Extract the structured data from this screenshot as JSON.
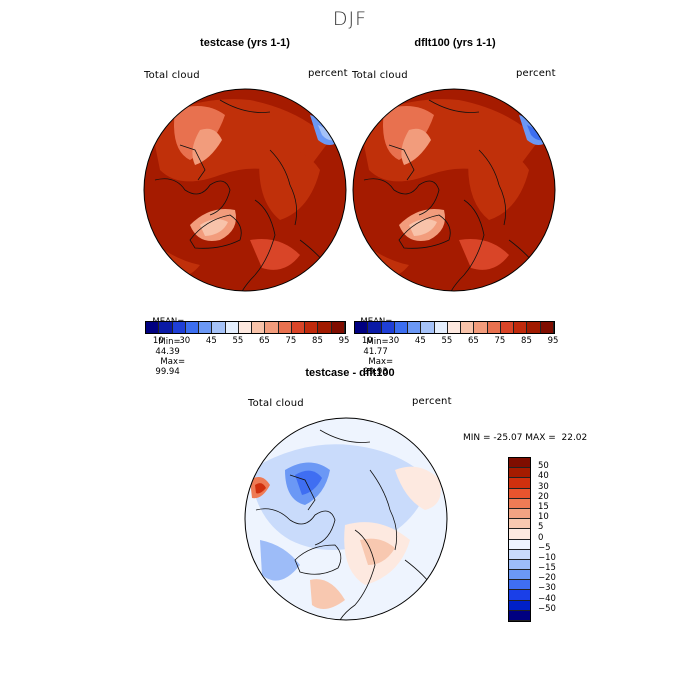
{
  "page_title": "DJF",
  "panels": [
    {
      "title": "testcase (yrs 1-1)",
      "field_label": "Total cloud",
      "units": "percent",
      "stats": {
        "mean_label": "MEAN=",
        "mean": "91.58",
        "min_label": "Min=",
        "min": "44.39",
        "max_label": "Max=",
        "max": "99.94"
      }
    },
    {
      "title": "dflt100 (yrs 1-1)",
      "field_label": "Total cloud",
      "units": "percent",
      "stats": {
        "mean_label": "MEAN=",
        "mean": "92.16",
        "min_label": "Min=",
        "min": "41.77",
        "max_label": "Max=",
        "max": "99.93"
      }
    }
  ],
  "abs_colorbar": {
    "colors": [
      "#000080",
      "#0a1aa6",
      "#1f3fd6",
      "#3c6ef0",
      "#6b98f5",
      "#a5c2f8",
      "#e4eefd",
      "#fde8df",
      "#f8c3aa",
      "#f29c7c",
      "#e8714f",
      "#d94528",
      "#c02a0c",
      "#a11b00",
      "#7f0d00"
    ],
    "tick_labels": [
      "10",
      "30",
      "45",
      "55",
      "65",
      "75",
      "85",
      "95"
    ]
  },
  "diff_panel": {
    "title": "testcase - dflt100",
    "field_label": "Total cloud",
    "units": "percent",
    "stats": "MIN = -25.07 MAX =  22.02"
  },
  "diff_colorbar": {
    "colors": [
      "#000080",
      "#0020c8",
      "#1a3fe8",
      "#3f6ef2",
      "#6b98f5",
      "#9dbcf8",
      "#c9dbfb",
      "#eef4fe",
      "#fde9e0",
      "#f8c8b0",
      "#f3a383",
      "#ee7b55",
      "#e8542e",
      "#d0300e",
      "#a51b00",
      "#7f0d00"
    ],
    "tick_labels": [
      "50",
      "40",
      "30",
      "20",
      "15",
      "10",
      "5",
      "0",
      "−5",
      "−10",
      "−15",
      "−20",
      "−30",
      "−40",
      "−50"
    ]
  }
}
